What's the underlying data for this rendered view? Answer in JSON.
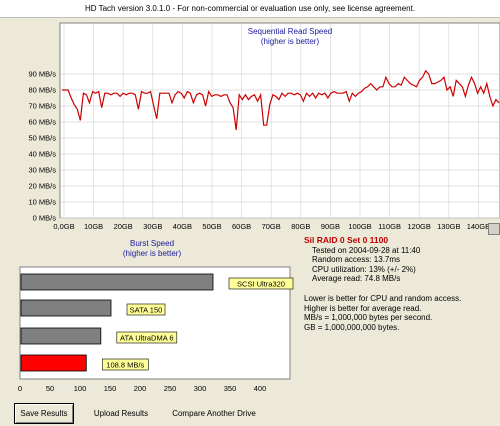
{
  "window": {
    "title": "HD Tach version 3.0.1.0  - For non-commercial or evaluation use only, see license agreement."
  },
  "colors": {
    "line": "#cc0000",
    "accent_bar": "#ff0000",
    "bar": "#808080",
    "label_bg": "#ffff99",
    "title_blue": "#1a1aa0"
  },
  "chart_data": [
    {
      "type": "line",
      "title": "Sequential Read Speed",
      "subtitle": "(higher is better)",
      "ylim": [
        0,
        100
      ],
      "yticks": [
        "0 MB/s",
        "10 MB/s",
        "20 MB/s",
        "30 MB/s",
        "40 MB/s",
        "50 MB/s",
        "60 MB/s",
        "70 MB/s",
        "80 MB/s",
        "90 MB/s"
      ],
      "xticks": [
        "0,0GB",
        "10GB",
        "20GB",
        "30GB",
        "40GB",
        "50GB",
        "60GB",
        "70GB",
        "80GB",
        "90GB",
        "100GB",
        "110GB",
        "120GB",
        "130GB",
        "140GB"
      ],
      "grid": true,
      "series": [
        {
          "x": [
            0,
            1,
            2,
            3,
            4,
            5,
            6,
            7,
            8,
            9,
            10,
            11,
            12,
            13,
            14,
            15,
            16,
            17,
            18,
            19,
            20,
            21,
            22,
            23,
            24,
            25,
            26,
            27,
            28,
            29,
            30,
            31,
            32,
            33,
            34,
            35,
            36,
            37,
            38,
            39,
            40,
            41,
            42,
            43,
            44,
            45,
            46,
            47,
            48,
            49,
            50,
            51,
            52,
            53,
            54,
            55,
            56,
            57,
            58,
            59,
            60,
            61,
            62,
            63,
            64,
            65,
            66,
            67,
            68,
            69,
            70,
            71,
            72,
            73,
            74,
            75,
            76,
            77,
            78,
            79,
            80,
            81,
            82,
            83,
            84,
            85,
            86,
            87,
            88,
            89,
            90,
            91,
            92,
            93,
            94,
            95,
            96,
            97,
            98,
            99,
            100,
            101,
            102,
            103,
            104,
            105,
            106,
            107,
            108,
            109,
            110,
            111,
            112,
            113,
            114,
            115,
            116,
            117,
            118,
            119,
            120,
            121,
            122,
            123,
            124,
            125,
            126,
            127,
            128,
            129,
            130,
            131,
            132,
            133,
            134,
            135,
            136,
            137,
            138,
            139,
            140,
            141,
            142,
            143
          ],
          "values": [
            80,
            80,
            80,
            75,
            71,
            68,
            61,
            78,
            77,
            72,
            79,
            78,
            79,
            69,
            78,
            78,
            77,
            78,
            78,
            76,
            78,
            77,
            78,
            78,
            77,
            68,
            79,
            78,
            78,
            79,
            70,
            62,
            78,
            78,
            78,
            78,
            72,
            77,
            79,
            78,
            75,
            79,
            78,
            72,
            77,
            78,
            77,
            70,
            79,
            76,
            77,
            77,
            76,
            77,
            77,
            72,
            69,
            55,
            77,
            74,
            77,
            74,
            76,
            77,
            73,
            77,
            58,
            58,
            71,
            77,
            76,
            74,
            78,
            76,
            78,
            78,
            77,
            78,
            77,
            73,
            78,
            76,
            78,
            75,
            78,
            77,
            78,
            75,
            78,
            79,
            78,
            78,
            78,
            79,
            73,
            78,
            76,
            78,
            79,
            81,
            82,
            84,
            82,
            80,
            82,
            82,
            88,
            84,
            82,
            82,
            84,
            83,
            88,
            86,
            84,
            83,
            82,
            86,
            88,
            92,
            90,
            84,
            84,
            85,
            86,
            88,
            80,
            82,
            76,
            86,
            84,
            82,
            76,
            83,
            88,
            84,
            78,
            82,
            78,
            84,
            76,
            70,
            74,
            72
          ]
        }
      ]
    },
    {
      "type": "bar",
      "title": "Burst Speed",
      "subtitle": "(higher is better)",
      "xlim": [
        0,
        450
      ],
      "xticks": [
        "0",
        "50",
        "100",
        "150",
        "200",
        "250",
        "300",
        "350",
        "400"
      ],
      "categories": [
        "SCSI Ultra320",
        "SATA 150",
        "ATA UltraDMA 6",
        "108.8 MB/s"
      ],
      "values": [
        320,
        150,
        133,
        108.8
      ],
      "highlight_index": 3
    }
  ],
  "info": {
    "drive": "Sil RAID  0 Set 0 1100",
    "tested": "Tested on 2004-09-28 at 11:40",
    "random_access": "Random access: 13.7ms",
    "cpu": "CPU utilization: 13% (+/- 2%)",
    "avg_read": "Average read: 74.8 MB/s",
    "note1": "Lower is better for CPU and random access.",
    "note2": "Higher is better for average read.",
    "note3": "MB/s = 1,000,000 bytes per second.",
    "note4": "GB = 1,000,000,000 bytes."
  },
  "buttons": {
    "save": "Save Results",
    "upload": "Upload Results",
    "compare": "Compare Another Drive"
  }
}
